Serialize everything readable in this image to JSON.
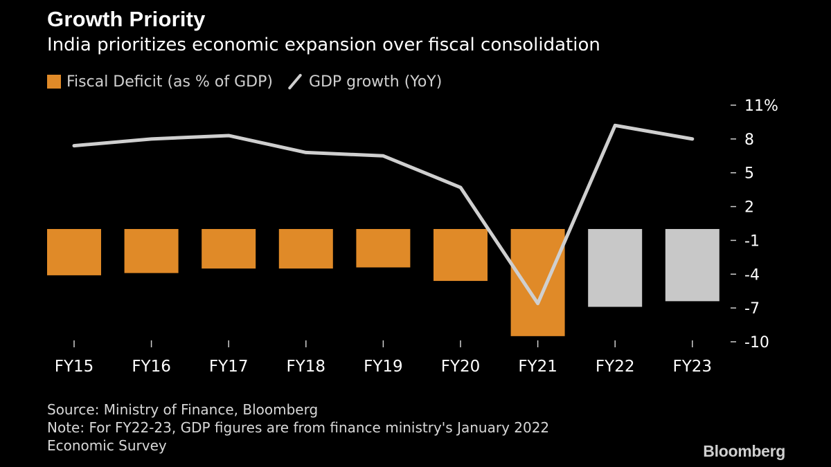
{
  "header": {
    "title": "Growth Priority",
    "subtitle": "India prioritizes economic expansion over fiscal consolidation"
  },
  "legend": {
    "bar_label": "Fiscal Deficit (as % of GDP)",
    "line_label": "GDP growth (YoY)"
  },
  "footer": {
    "source": "Source: Ministry of Finance, Bloomberg",
    "note_line1": "Note: For FY22-23, GDP figures are from finance ministry's January 2022",
    "note_line2": "Economic Survey",
    "brand": "Bloomberg"
  },
  "colors": {
    "background": "#000000",
    "bar": "#e08a28",
    "bar_estimate": "#c8c8c8",
    "line": "#cfcfcf",
    "text": "#ffffff",
    "axis": "#d0d0d0"
  },
  "chart_data": {
    "type": "bar",
    "categories": [
      "FY15",
      "FY16",
      "FY17",
      "FY18",
      "FY19",
      "FY20",
      "FY21",
      "FY22",
      "FY23"
    ],
    "series": [
      {
        "name": "Fiscal Deficit (as % of GDP)",
        "type": "bar",
        "values": [
          -4.1,
          -3.9,
          -3.5,
          -3.5,
          -3.4,
          -4.6,
          -9.5,
          -6.9,
          -6.4
        ],
        "estimate_from_index": 7
      },
      {
        "name": "GDP growth (YoY)",
        "type": "line",
        "values": [
          7.4,
          8.0,
          8.3,
          6.8,
          6.5,
          3.7,
          -6.6,
          9.2,
          8.0
        ]
      }
    ],
    "yticks": [
      11,
      8,
      5,
      2,
      -1,
      -4,
      -7,
      -10
    ],
    "ytick_labels": [
      "11%",
      "8",
      "5",
      "2",
      "-1",
      "-4",
      "-7",
      "-10"
    ],
    "ylim": [
      -10,
      11
    ],
    "grid": false,
    "legend_position": "top-left"
  }
}
